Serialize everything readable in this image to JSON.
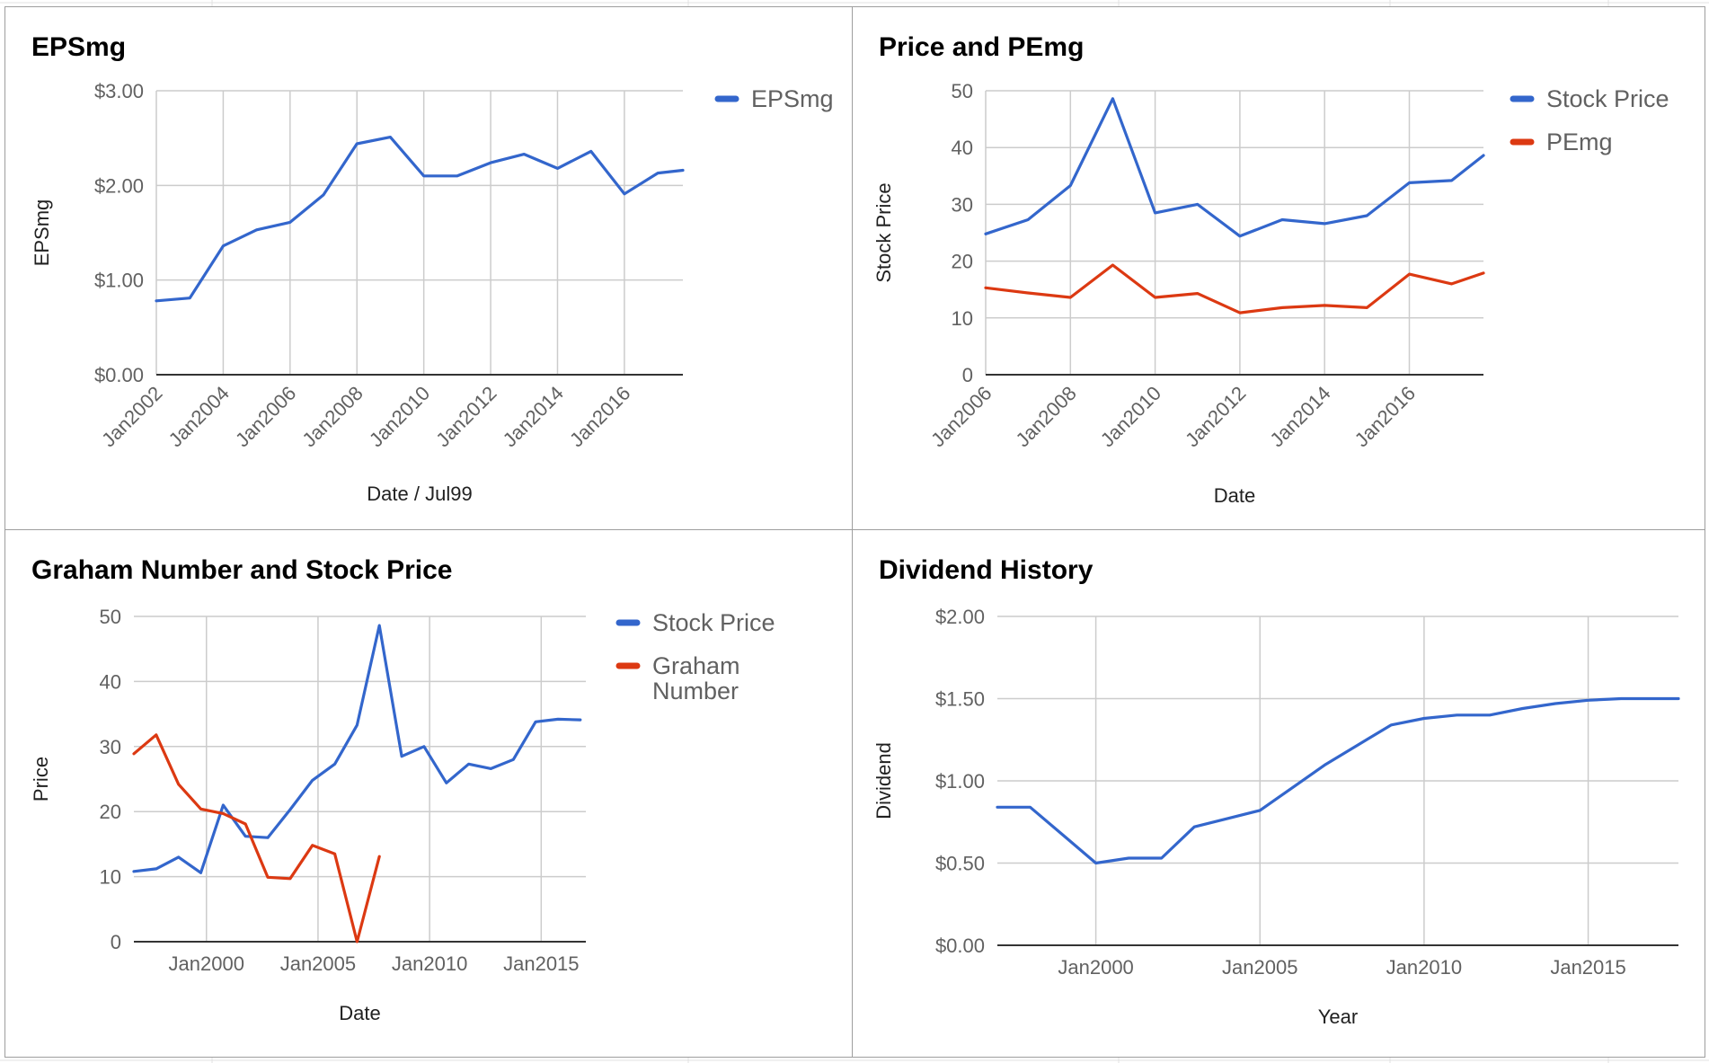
{
  "colors": {
    "blue": "#3366cc",
    "red": "#dc3912",
    "grid": "#cccccc",
    "axis": "#333333"
  },
  "charts": {
    "eps": {
      "title": "EPSmg",
      "xlabel": "Date / Jul99",
      "ylabel": "EPSmg",
      "ytick_labels": [
        "$0.00",
        "$1.00",
        "$2.00",
        "$3.00"
      ],
      "xtick_labels": [
        "Jan2002",
        "Jan2004",
        "Jan2006",
        "Jan2008",
        "Jan2010",
        "Jan2012",
        "Jan2014",
        "Jan2016"
      ],
      "legend": [
        "EPSmg"
      ]
    },
    "price_pe": {
      "title": "Price and PEmg",
      "xlabel": "Date",
      "ylabel": "Stock Price",
      "ytick_labels": [
        "0",
        "10",
        "20",
        "30",
        "40",
        "50"
      ],
      "xtick_labels": [
        "Jan2006",
        "Jan2008",
        "Jan2010",
        "Jan2012",
        "Jan2014",
        "Jan2016"
      ],
      "legend": [
        "Stock Price",
        "PEmg"
      ]
    },
    "graham": {
      "title": "Graham Number and Stock Price",
      "xlabel": "Date",
      "ylabel": "Price",
      "ytick_labels": [
        "0",
        "10",
        "20",
        "30",
        "40",
        "50"
      ],
      "xtick_labels": [
        "Jan2000",
        "Jan2005",
        "Jan2010",
        "Jan2015"
      ],
      "legend": [
        "Stock Price",
        "Graham Number"
      ]
    },
    "dividend": {
      "title": "Dividend History",
      "xlabel": "Year",
      "ylabel": "Dividend",
      "ytick_labels": [
        "$0.00",
        "$0.50",
        "$1.00",
        "$1.50",
        "$2.00"
      ],
      "xtick_labels": [
        "Jan2000",
        "Jan2005",
        "Jan2010",
        "Jan2015"
      ]
    }
  },
  "chart_data": [
    {
      "type": "line",
      "title": "EPSmg",
      "xlabel": "Date / Jul99",
      "ylabel": "EPSmg",
      "xlim": [
        2002.0,
        2017.75
      ],
      "ylim": [
        0,
        3
      ],
      "x": [
        2002.0,
        2003.0,
        2004.0,
        2005.0,
        2006.0,
        2007.0,
        2008.0,
        2009.0,
        2010.0,
        2011.0,
        2012.0,
        2013.0,
        2014.0,
        2015.0,
        2016.0,
        2017.0,
        2017.75
      ],
      "series": [
        {
          "name": "EPSmg",
          "color": "#3366cc",
          "values": [
            0.78,
            0.81,
            1.36,
            1.53,
            1.61,
            1.9,
            2.44,
            2.51,
            2.1,
            2.1,
            2.24,
            2.33,
            2.18,
            2.36,
            1.91,
            2.13,
            2.16
          ]
        }
      ],
      "grid": true,
      "legend_position": "right"
    },
    {
      "type": "line",
      "title": "Price and PEmg",
      "xlabel": "Date",
      "ylabel": "Stock Price",
      "xlim": [
        2006.0,
        2017.75
      ],
      "ylim": [
        0,
        50
      ],
      "x": [
        2006.0,
        2007.0,
        2008.0,
        2009.0,
        2010.0,
        2011.0,
        2012.0,
        2013.0,
        2014.0,
        2015.0,
        2016.0,
        2017.0,
        2017.75
      ],
      "series": [
        {
          "name": "Stock Price",
          "color": "#3366cc",
          "values": [
            24.8,
            27.3,
            33.3,
            48.6,
            28.5,
            30.0,
            24.4,
            27.3,
            26.6,
            28.0,
            33.8,
            34.2,
            38.6
          ]
        },
        {
          "name": "PEmg",
          "color": "#dc3912",
          "values": [
            15.3,
            14.4,
            13.6,
            19.3,
            13.6,
            14.3,
            10.9,
            11.8,
            12.2,
            11.8,
            17.7,
            16.0,
            17.9
          ]
        }
      ],
      "grid": true,
      "legend_position": "right"
    },
    {
      "type": "line",
      "title": "Graham Number and Stock Price",
      "xlabel": "Date",
      "ylabel": "Price",
      "xlim": [
        1996.75,
        2017.0
      ],
      "ylim": [
        0,
        50
      ],
      "series": [
        {
          "name": "Stock Price",
          "color": "#3366cc",
          "x": [
            1996.75,
            1997.75,
            1998.75,
            1999.75,
            2000.75,
            2001.75,
            2002.75,
            2003.75,
            2004.75,
            2005.75,
            2006.75,
            2007.75,
            2008.75,
            2009.75,
            2010.75,
            2011.75,
            2012.75,
            2013.75,
            2014.75,
            2015.75,
            2016.75
          ],
          "values": [
            10.8,
            11.2,
            13.0,
            10.6,
            21.0,
            16.2,
            16.0,
            20.3,
            24.8,
            27.3,
            33.3,
            48.6,
            28.5,
            30.0,
            24.4,
            27.3,
            26.6,
            28.0,
            33.8,
            34.2,
            34.1
          ]
        },
        {
          "name": "Graham Number",
          "color": "#dc3912",
          "x": [
            1996.75,
            1997.75,
            1998.75,
            1999.75,
            2000.75,
            2001.75,
            2002.75,
            2003.75,
            2004.75,
            2005.75,
            2006.75,
            2007.75
          ],
          "values": [
            28.9,
            31.8,
            24.2,
            20.4,
            19.7,
            18.1,
            9.9,
            9.7,
            14.8,
            13.5,
            0.0,
            13.1
          ]
        }
      ],
      "grid": true,
      "legend_position": "right"
    },
    {
      "type": "line",
      "title": "Dividend History",
      "xlabel": "Year",
      "ylabel": "Dividend",
      "xlim": [
        1997.0,
        2017.75
      ],
      "ylim": [
        0,
        2
      ],
      "x": [
        1997.0,
        1998.0,
        1999.0,
        2000.0,
        2001.0,
        2002.0,
        2003.0,
        2004.0,
        2005.0,
        2006.0,
        2007.0,
        2008.0,
        2009.0,
        2010.0,
        2011.0,
        2012.0,
        2013.0,
        2014.0,
        2015.0,
        2016.0,
        2017.0,
        2017.75
      ],
      "series": [
        {
          "name": "Dividend",
          "color": "#3366cc",
          "values": [
            0.84,
            0.84,
            0.67,
            0.5,
            0.53,
            0.53,
            0.72,
            0.77,
            0.82,
            0.96,
            1.1,
            1.22,
            1.34,
            1.38,
            1.4,
            1.4,
            1.44,
            1.47,
            1.49,
            1.5,
            1.5,
            1.5
          ]
        }
      ],
      "grid": true,
      "legend_position": "none"
    }
  ]
}
